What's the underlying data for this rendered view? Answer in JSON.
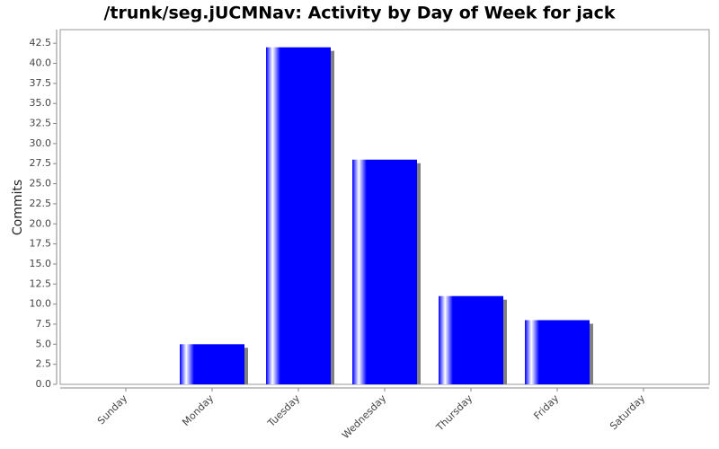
{
  "chart_data": {
    "type": "bar",
    "title": "/trunk/seg.jUCMNav: Activity by Day of Week for jack",
    "y_label": "Commits",
    "categories": [
      "Sunday",
      "Monday",
      "Tuesday",
      "Wednesday",
      "Thursday",
      "Friday",
      "Saturday"
    ],
    "values": [
      0,
      5,
      42,
      28,
      11,
      8,
      0
    ],
    "color": "#0000ff",
    "ylim": [
      0,
      44.2
    ],
    "yticks": [
      {
        "value": 0,
        "label": "0.0"
      },
      {
        "value": 2.5,
        "label": "2.5"
      },
      {
        "value": 5,
        "label": "5.0"
      },
      {
        "value": 7.5,
        "label": "7.5"
      },
      {
        "value": 10,
        "label": "10.0"
      },
      {
        "value": 12.5,
        "label": "12.5"
      },
      {
        "value": 15,
        "label": "15.0"
      },
      {
        "value": 17.5,
        "label": "17.5"
      },
      {
        "value": 20,
        "label": "20.0"
      },
      {
        "value": 22.5,
        "label": "22.5"
      },
      {
        "value": 25,
        "label": "25.0"
      },
      {
        "value": 27.5,
        "label": "27.5"
      },
      {
        "value": 30,
        "label": "30.0"
      },
      {
        "value": 32.5,
        "label": "32.5"
      },
      {
        "value": 35,
        "label": "35.0"
      },
      {
        "value": 37.5,
        "label": "37.5"
      },
      {
        "value": 40,
        "label": "40.0"
      },
      {
        "value": 42.5,
        "label": "42.5"
      }
    ],
    "grid": false
  }
}
